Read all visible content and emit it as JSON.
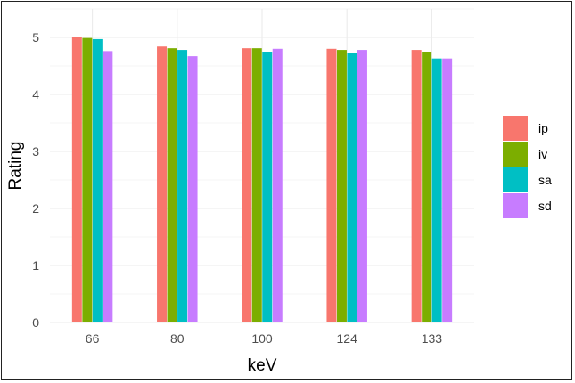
{
  "chart_data": {
    "type": "bar",
    "title": "",
    "xlabel": "keV",
    "ylabel": "Rating",
    "categories": [
      "66",
      "80",
      "100",
      "124",
      "133"
    ],
    "ylim": [
      0,
      5.5
    ],
    "yticks": [
      "0",
      "1",
      "2",
      "3",
      "4",
      "5"
    ],
    "grid": true,
    "legend_position": "right",
    "series": [
      {
        "name": "ip",
        "color": "#F8766D",
        "values": [
          5.0,
          4.84,
          4.81,
          4.8,
          4.78
        ]
      },
      {
        "name": "iv",
        "color": "#7CAE00",
        "values": [
          4.99,
          4.81,
          4.81,
          4.78,
          4.75
        ]
      },
      {
        "name": "sa",
        "color": "#00BFC4",
        "values": [
          4.97,
          4.78,
          4.75,
          4.73,
          4.63
        ]
      },
      {
        "name": "sd",
        "color": "#C77CFF",
        "values": [
          4.76,
          4.67,
          4.8,
          4.78,
          4.63
        ]
      }
    ]
  }
}
